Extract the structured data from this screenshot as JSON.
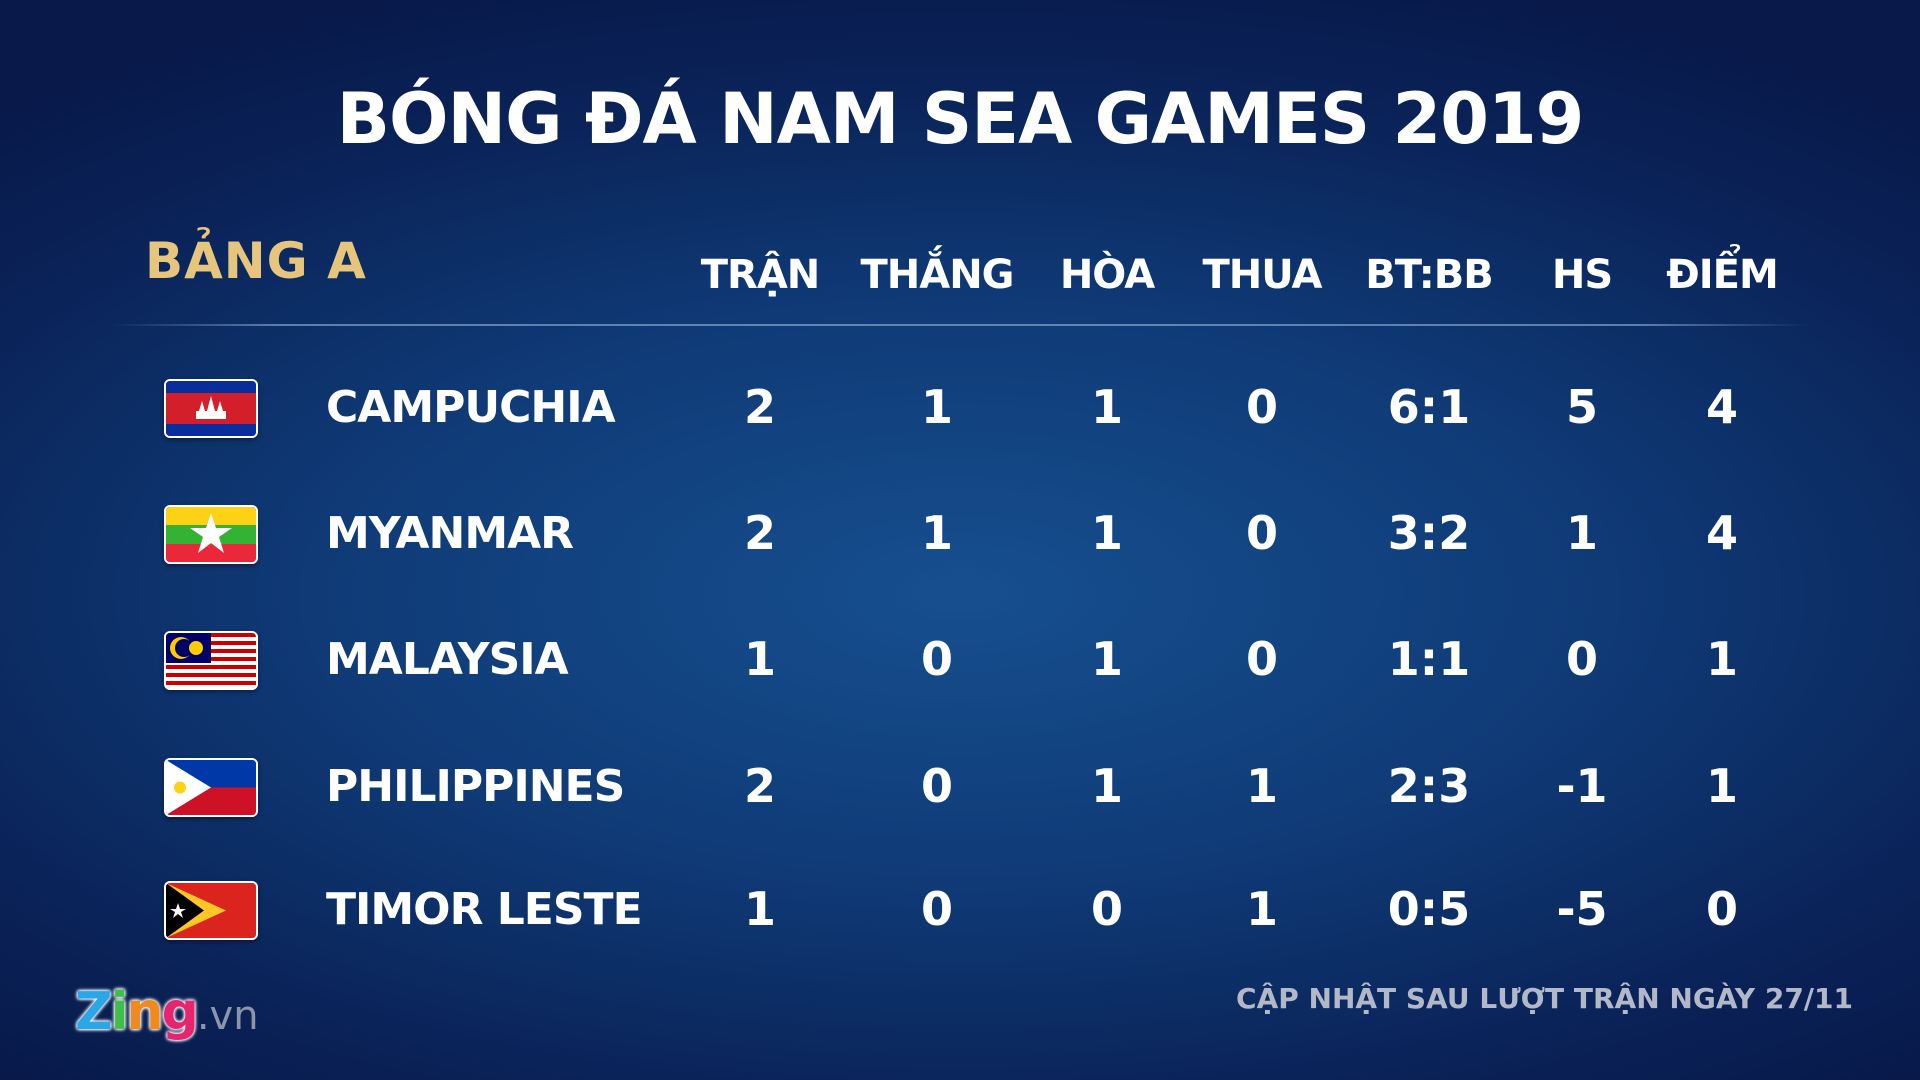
{
  "title": "BÓNG ĐÁ NAM SEA GAMES 2019",
  "group": "BẢNG A",
  "columns": [
    "TRẬN",
    "THẮNG",
    "HÒA",
    "THUA",
    "BT:BB",
    "HS",
    "ĐIỂM"
  ],
  "rows": [
    {
      "team": "CAMPUCHIA",
      "flag": "cambodia-flag",
      "values": [
        "2",
        "1",
        "1",
        "0",
        "6:1",
        "5",
        "4"
      ]
    },
    {
      "team": "MYANMAR",
      "flag": "myanmar-flag",
      "values": [
        "2",
        "1",
        "1",
        "0",
        "3:2",
        "1",
        "4"
      ]
    },
    {
      "team": "MALAYSIA",
      "flag": "malaysia-flag",
      "values": [
        "1",
        "0",
        "1",
        "0",
        "1:1",
        "0",
        "1"
      ]
    },
    {
      "team": "PHILIPPINES",
      "flag": "philippines-flag",
      "values": [
        "2",
        "0",
        "1",
        "1",
        "2:3",
        "-1",
        "1"
      ]
    },
    {
      "team": "TIMOR LESTE",
      "flag": "timor-leste-flag",
      "values": [
        "1",
        "0",
        "0",
        "1",
        "0:5",
        "-5",
        "0"
      ]
    }
  ],
  "logo": {
    "brand": "Zing",
    "suffix": ".vn"
  },
  "footer": "CẬP NHẬT SAU LƯỢT TRẬN NGÀY 27/11",
  "colors": {
    "group": "#e6c67c",
    "background": "#0f3a76"
  }
}
